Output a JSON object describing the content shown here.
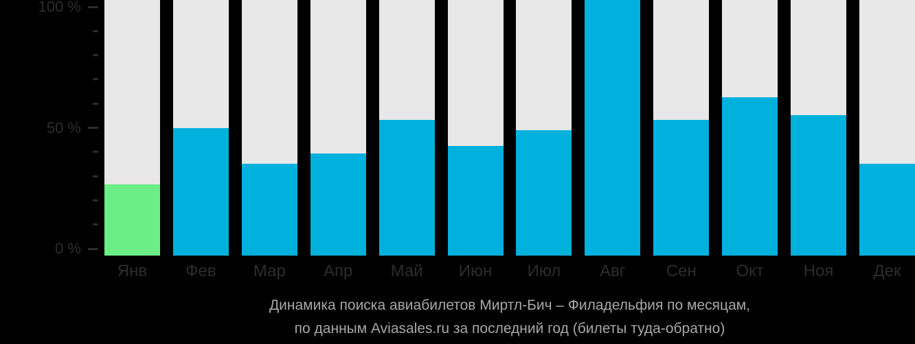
{
  "page": {
    "background": "#000000"
  },
  "chart_data": {
    "type": "bar",
    "title": "Динамика поиска авиабилетов Миртл-Бич – Филадельфия по месяцам,",
    "subtitle": "по данным Aviasales.ru за последний год (билеты туда-обратно)",
    "categories": [
      "Янв",
      "Фев",
      "Мар",
      "Апр",
      "Май",
      "Июн",
      "Июл",
      "Авг",
      "Сен",
      "Окт",
      "Ноя",
      "Дек"
    ],
    "values": [
      28,
      50,
      36,
      40,
      53,
      43,
      49,
      100,
      53,
      62,
      55,
      36
    ],
    "unit": "%",
    "xlabel": "",
    "ylabel": "",
    "ylim": [
      0,
      100
    ],
    "yticks": [
      {
        "value": 100,
        "label": "100 %"
      },
      {
        "value": 50,
        "label": "50 %"
      },
      {
        "value": 0,
        "label": "0 %"
      }
    ],
    "minor_tick_step": 10,
    "grid": false,
    "legend": false,
    "highlight_index": 0,
    "colors": {
      "bar": "#00b1dd",
      "highlight_bar": "#6cee87",
      "column_background": "#e8e8e8",
      "axis_text": "#2d2d2d",
      "caption_text": "#a8a8a8",
      "page_background": "#000000"
    }
  }
}
